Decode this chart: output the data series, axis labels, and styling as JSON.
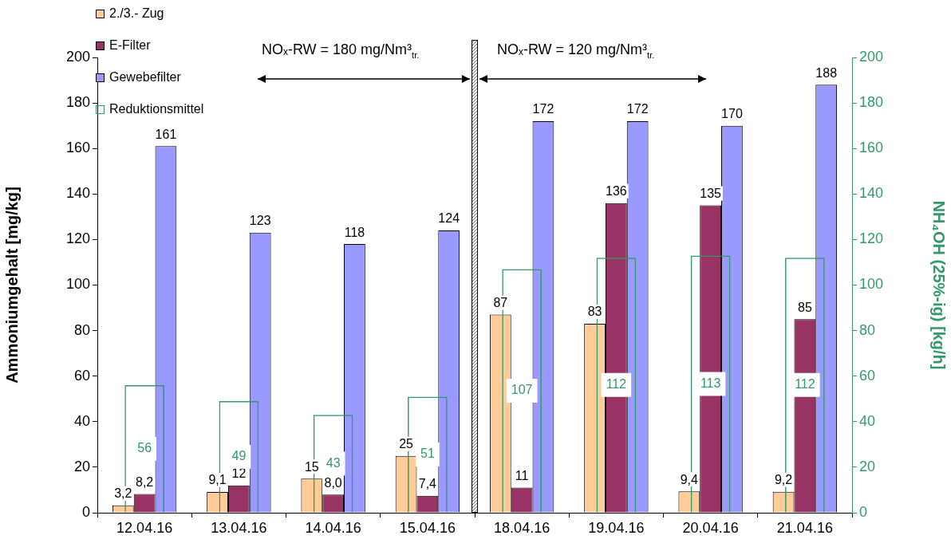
{
  "chart_data": {
    "type": "bar",
    "ylabel": "Ammoniumgehalt [mg/kg]",
    "y2label": "NH₄OH (25%-ig) [kg/h]",
    "categories": [
      "12.04.16",
      "13.04.16",
      "14.04.16",
      "15.04.16",
      "18.04.16",
      "19.04.16",
      "20.04.16",
      "21.04.16"
    ],
    "series": [
      {
        "name": "2./3.- Zug",
        "color": "#ffcc99",
        "values": [
          3.2,
          9.1,
          15,
          25,
          87,
          83,
          9.4,
          9.2
        ],
        "value_labels": [
          "3,2",
          "9,1",
          "15",
          "25",
          "87",
          "83",
          "9,4",
          "9,2"
        ]
      },
      {
        "name": "E-Filter",
        "color": "#993366",
        "values": [
          8.2,
          12,
          8.0,
          7.4,
          11,
          136,
          135,
          85
        ],
        "value_labels": [
          "8,2",
          "12",
          "8,0",
          "7,4",
          "11",
          "136",
          "135",
          "85"
        ]
      },
      {
        "name": "Gewebefilter",
        "color": "#9999ff",
        "values": [
          161,
          123,
          118,
          124,
          172,
          172,
          170,
          188
        ],
        "value_labels": [
          "161",
          "123",
          "118",
          "124",
          "172",
          "172",
          "170",
          "188"
        ]
      },
      {
        "name": "Reduktionsmittel",
        "color": "#339966",
        "axis": "y2",
        "values": [
          56,
          49,
          43,
          51,
          107,
          112,
          113,
          112
        ],
        "value_labels": [
          "56",
          "49",
          "43",
          "51",
          "107",
          "112",
          "113",
          "112"
        ]
      }
    ],
    "ylim": [
      0,
      200
    ],
    "yticks": [
      0,
      20,
      40,
      60,
      80,
      100,
      120,
      140,
      160,
      180,
      200
    ],
    "y2lim": [
      0,
      200
    ],
    "y2ticks": [
      0,
      20,
      40,
      60,
      80,
      100,
      120,
      140,
      160,
      180,
      200
    ],
    "annotations": [
      "NOₓ-RW = 180 mg/Nm³$_{tr.}$",
      "NOₓ-RW = 120 mg/Nm³$_{tr.}$"
    ],
    "legend": "top left",
    "grid": false
  }
}
